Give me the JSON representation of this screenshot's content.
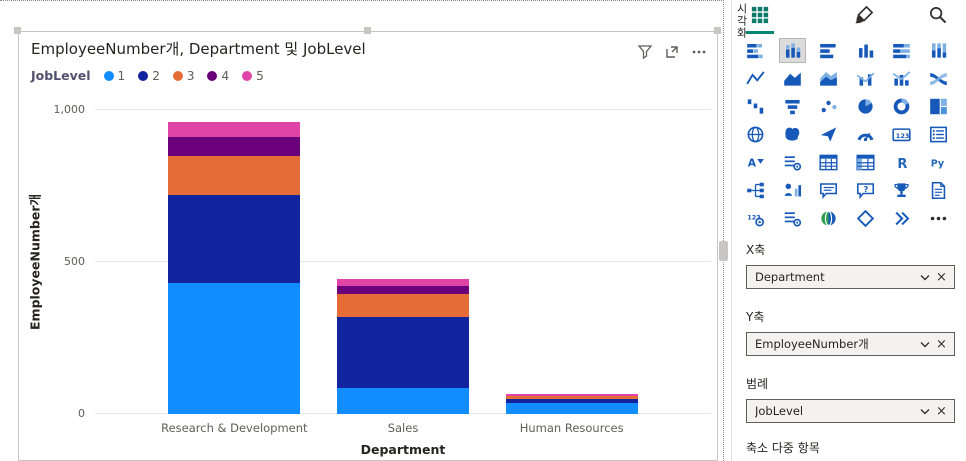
{
  "chart_data": {
    "type": "bar",
    "stacked": true,
    "title": "EmployeeNumber개, Department 및 JobLevel",
    "xlabel": "Department",
    "ylabel": "EmployeeNumber개",
    "legend_title": "JobLevel",
    "legend_position": "top-left",
    "grid": true,
    "categories": [
      "Research & Development",
      "Sales",
      "Human Resources"
    ],
    "series": [
      {
        "name": "1",
        "color": "#118DFF",
        "values": [
          430,
          85,
          35
        ]
      },
      {
        "name": "2",
        "color": "#12239E",
        "values": [
          290,
          235,
          15
        ]
      },
      {
        "name": "3",
        "color": "#E66C37",
        "values": [
          130,
          75,
          8
        ]
      },
      {
        "name": "4",
        "color": "#6B007B",
        "values": [
          60,
          25,
          3
        ]
      },
      {
        "name": "5",
        "color": "#E044A7",
        "values": [
          50,
          25,
          4
        ]
      }
    ],
    "ylim": [
      0,
      1000
    ],
    "yticks": [
      0,
      500,
      1000
    ],
    "ytick_labels": [
      "0",
      "500",
      "1,000"
    ]
  },
  "pane": {
    "title": "시각화",
    "tabs": [
      {
        "name": "build-visual",
        "icon": "tab-build",
        "selected": true
      },
      {
        "name": "format-visual",
        "icon": "tab-brush",
        "selected": false
      },
      {
        "name": "analytics",
        "icon": "tab-search",
        "selected": false
      }
    ],
    "gallery": [
      {
        "name": "stacked-bar-chart",
        "g": "bars-h-stack"
      },
      {
        "name": "stacked-column-chart",
        "g": "cols-stack",
        "selected": true
      },
      {
        "name": "clustered-bar-chart",
        "g": "bars-h"
      },
      {
        "name": "clustered-column-chart",
        "g": "cols"
      },
      {
        "name": "100-stacked-bar-chart",
        "g": "bars-100"
      },
      {
        "name": "100-stacked-column-chart",
        "g": "cols-100"
      },
      {
        "name": "line-chart",
        "g": "line"
      },
      {
        "name": "area-chart",
        "g": "area"
      },
      {
        "name": "stacked-area-chart",
        "g": "area-stack"
      },
      {
        "name": "line-and-stacked-column-chart",
        "g": "combo"
      },
      {
        "name": "line-and-clustered-column-chart",
        "g": "combo2"
      },
      {
        "name": "ribbon-chart",
        "g": "ribbon"
      },
      {
        "name": "waterfall-chart",
        "g": "waterfall"
      },
      {
        "name": "funnel-chart",
        "g": "funnel"
      },
      {
        "name": "scatter-chart",
        "g": "scatter"
      },
      {
        "name": "pie-chart",
        "g": "pie"
      },
      {
        "name": "donut-chart",
        "g": "donut"
      },
      {
        "name": "treemap",
        "g": "treemap"
      },
      {
        "name": "map",
        "g": "globe"
      },
      {
        "name": "filled-map",
        "g": "filled-map"
      },
      {
        "name": "azure-map",
        "g": "plane"
      },
      {
        "name": "gauge",
        "g": "gauge"
      },
      {
        "name": "card",
        "g": "card123"
      },
      {
        "name": "multi-row-card",
        "g": "multirow"
      },
      {
        "name": "slicer",
        "g": "slicer"
      },
      {
        "name": "new-slicer",
        "g": "gear-list"
      },
      {
        "name": "table",
        "g": "table"
      },
      {
        "name": "matrix",
        "g": "matrix"
      },
      {
        "name": "r-script-visual",
        "g": "tR"
      },
      {
        "name": "python-visual",
        "g": "tPy"
      },
      {
        "name": "decomposition-tree",
        "g": "tree"
      },
      {
        "name": "key-influencers",
        "g": "influencer"
      },
      {
        "name": "smart-narrative",
        "g": "bubble-lines"
      },
      {
        "name": "q-and-a",
        "g": "bubble-q"
      },
      {
        "name": "metrics",
        "g": "trophy"
      },
      {
        "name": "paginated-report",
        "g": "page"
      },
      {
        "name": "new-card",
        "g": "gear123"
      },
      {
        "name": "text-slicer",
        "g": "gear-list"
      },
      {
        "name": "arcgis-map",
        "g": "globe-color"
      },
      {
        "name": "power-apps",
        "g": "diamond"
      },
      {
        "name": "power-automate",
        "g": "chevrons"
      },
      {
        "name": "more-visuals",
        "g": "ellipsis"
      }
    ],
    "wells": [
      {
        "name": "x-axis",
        "label": "X축",
        "value": "Department"
      },
      {
        "name": "y-axis",
        "label": "Y축",
        "value": "EmployeeNumber개"
      },
      {
        "name": "legend",
        "label": "범례",
        "value": "JobLevel"
      }
    ],
    "small_multiples_label": "축소 다중 항목"
  }
}
